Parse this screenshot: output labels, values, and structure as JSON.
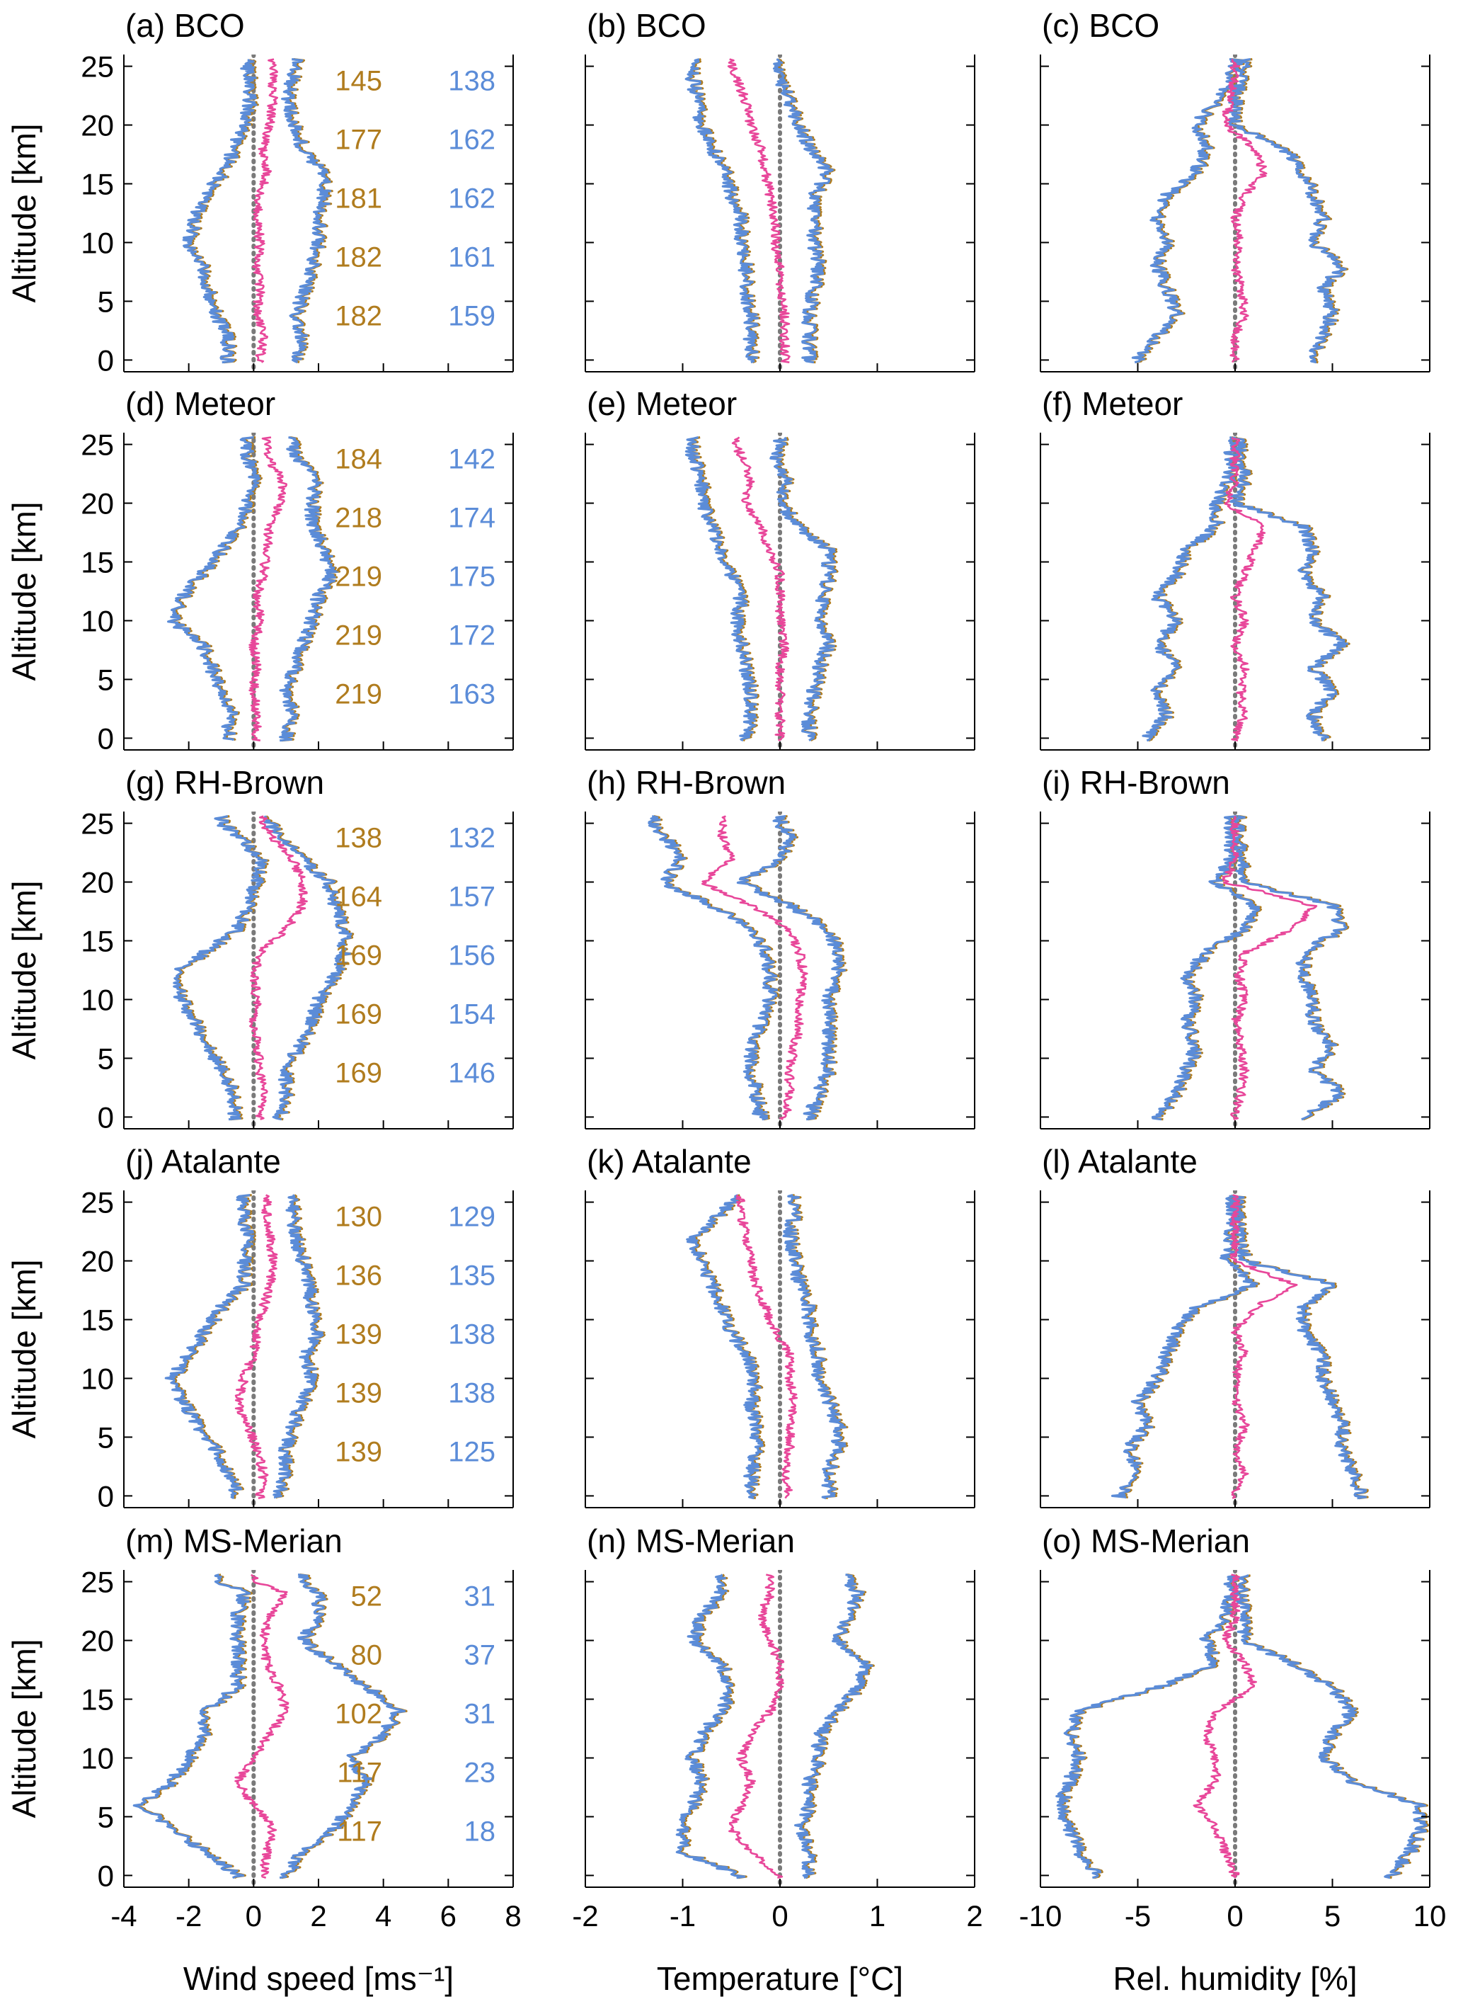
{
  "colors": {
    "orange": "#B07C1E",
    "blue": "#5B8CD8",
    "pink": "#E8479A",
    "zero_line": "#7a7a7a",
    "axis": "#000000"
  },
  "y_axis": {
    "label": "Altitude [km]",
    "range": [
      -1,
      26
    ],
    "ticks": [
      0,
      5,
      10,
      15,
      20,
      25
    ],
    "tick_labels": [
      "0",
      "5",
      "10",
      "15",
      "20",
      "25"
    ]
  },
  "x_axes": [
    {
      "label": "Wind speed [ms⁻¹]",
      "range": [
        -4,
        8
      ],
      "ticks": [
        -4,
        -2,
        0,
        2,
        4,
        6,
        8
      ],
      "tick_labels": [
        "-4",
        "-2",
        "0",
        "2",
        "4",
        "6",
        "8"
      ]
    },
    {
      "label": "Temperature [°C]",
      "range": [
        -2,
        2
      ],
      "ticks": [
        -2,
        -1,
        0,
        1,
        2
      ],
      "tick_labels": [
        "-2",
        "-1",
        "0",
        "1",
        "2"
      ]
    },
    {
      "label": "Rel. humidity [%]",
      "range": [
        -10,
        10
      ],
      "ticks": [
        -10,
        -5,
        0,
        5,
        10
      ],
      "tick_labels": [
        "-10",
        "-5",
        "0",
        "5",
        "10"
      ]
    }
  ],
  "rows": [
    {
      "platform": "BCO",
      "titles": [
        "(a) BCO",
        "(b) BCO",
        "(c) BCO"
      ],
      "count_altitudes": [
        23.8,
        18.8,
        13.8,
        8.8,
        3.8
      ],
      "counts_orange": [
        "145",
        "177",
        "181",
        "182",
        "182"
      ],
      "counts_blue": [
        "138",
        "162",
        "162",
        "161",
        "159"
      ]
    },
    {
      "platform": "Meteor",
      "titles": [
        "(d) Meteor",
        "(e) Meteor",
        "(f) Meteor"
      ],
      "count_altitudes": [
        23.8,
        18.8,
        13.8,
        8.8,
        3.8
      ],
      "counts_orange": [
        "184",
        "218",
        "219",
        "219",
        "219"
      ],
      "counts_blue": [
        "142",
        "174",
        "175",
        "172",
        "163"
      ]
    },
    {
      "platform": "RH-Brown",
      "titles": [
        "(g) RH-Brown",
        "(h) RH-Brown",
        "(i) RH-Brown"
      ],
      "count_altitudes": [
        23.8,
        18.8,
        13.8,
        8.8,
        3.8
      ],
      "counts_orange": [
        "138",
        "164",
        "169",
        "169",
        "169"
      ],
      "counts_blue": [
        "132",
        "157",
        "156",
        "154",
        "146"
      ]
    },
    {
      "platform": "Atalante",
      "titles": [
        "(j) Atalante",
        "(k) Atalante",
        "(l) Atalante"
      ],
      "count_altitudes": [
        23.8,
        18.8,
        13.8,
        8.8,
        3.8
      ],
      "counts_orange": [
        "130",
        "136",
        "139",
        "139",
        "139"
      ],
      "counts_blue": [
        "129",
        "135",
        "138",
        "138",
        "125"
      ]
    },
    {
      "platform": "MS-Merian",
      "titles": [
        "(m) MS-Merian",
        "(n) MS-Merian",
        "(o) MS-Merian"
      ],
      "count_altitudes": [
        23.8,
        18.8,
        13.8,
        8.8,
        3.8
      ],
      "counts_orange": [
        "52",
        "80",
        "102",
        "117",
        "117"
      ],
      "counts_blue": [
        "31",
        "37",
        "31",
        "23",
        "18"
      ]
    }
  ],
  "chart_data": {
    "type": "line",
    "layout": "5 rows (platforms) x 3 columns (variables)",
    "altitude_km": [
      0,
      2,
      4,
      6,
      8,
      10,
      12,
      14,
      16,
      18,
      20,
      22,
      24,
      25
    ],
    "panels": [
      {
        "panel": "a",
        "pink": [
          0.2,
          0.3,
          0.1,
          0.2,
          0.1,
          0.2,
          0.1,
          0.2,
          0.4,
          0.3,
          0.5,
          0.6,
          0.6,
          0.6
        ],
        "lower": [
          -0.8,
          -0.8,
          -1.2,
          -1.4,
          -1.6,
          -2.0,
          -1.8,
          -1.5,
          -0.9,
          -0.6,
          -0.3,
          -0.1,
          -0.1,
          -0.2
        ],
        "upper": [
          1.4,
          1.5,
          1.3,
          1.6,
          1.8,
          2.0,
          2.0,
          2.2,
          2.1,
          1.5,
          1.3,
          1.0,
          1.2,
          1.3
        ]
      },
      {
        "panel": "b",
        "pink": [
          0.05,
          0.05,
          0.05,
          0.0,
          0.0,
          -0.05,
          -0.05,
          -0.1,
          -0.15,
          -0.2,
          -0.3,
          -0.35,
          -0.45,
          -0.5
        ],
        "lower": [
          -0.3,
          -0.3,
          -0.3,
          -0.35,
          -0.35,
          -0.4,
          -0.4,
          -0.5,
          -0.55,
          -0.7,
          -0.8,
          -0.85,
          -0.9,
          -0.9
        ],
        "upper": [
          0.3,
          0.3,
          0.3,
          0.35,
          0.4,
          0.35,
          0.35,
          0.35,
          0.5,
          0.3,
          0.2,
          0.1,
          0.0,
          0.0
        ]
      },
      {
        "panel": "c",
        "pink": [
          0.0,
          0.0,
          0.5,
          0.3,
          0.0,
          0.2,
          0.0,
          0.5,
          1.5,
          1.0,
          -0.5,
          -0.3,
          0.0,
          0.0
        ],
        "lower": [
          -5.0,
          -4.0,
          -3.0,
          -3.5,
          -4.0,
          -3.5,
          -4.0,
          -3.5,
          -2.0,
          -1.5,
          -2.0,
          -1.0,
          -0.3,
          0.0
        ],
        "upper": [
          4.0,
          4.5,
          5.0,
          4.5,
          5.5,
          4.0,
          4.5,
          4.0,
          3.5,
          2.5,
          0.0,
          0.0,
          0.3,
          0.5
        ]
      },
      {
        "panel": "d",
        "pink": [
          0.1,
          0.1,
          0.0,
          0.1,
          0.0,
          0.2,
          0.1,
          0.3,
          0.4,
          0.5,
          0.8,
          0.9,
          0.4,
          0.4
        ],
        "lower": [
          -0.8,
          -0.7,
          -1.0,
          -1.3,
          -1.6,
          -2.5,
          -2.2,
          -1.6,
          -1.0,
          -0.4,
          -0.2,
          0.0,
          -0.2,
          -0.2
        ],
        "upper": [
          1.0,
          1.2,
          1.0,
          1.3,
          1.5,
          1.8,
          2.0,
          2.4,
          2.2,
          1.8,
          1.8,
          1.9,
          1.3,
          1.2
        ]
      },
      {
        "panel": "e",
        "pink": [
          0.0,
          0.0,
          0.0,
          0.0,
          0.05,
          0.0,
          0.0,
          0.0,
          -0.1,
          -0.2,
          -0.35,
          -0.3,
          -0.4,
          -0.45
        ],
        "lower": [
          -0.35,
          -0.3,
          -0.3,
          -0.35,
          -0.4,
          -0.45,
          -0.4,
          -0.5,
          -0.6,
          -0.7,
          -0.8,
          -0.8,
          -0.9,
          -0.9
        ],
        "upper": [
          0.3,
          0.3,
          0.35,
          0.4,
          0.5,
          0.4,
          0.45,
          0.5,
          0.5,
          0.2,
          0.0,
          0.05,
          -0.05,
          0.0
        ]
      },
      {
        "panel": "f",
        "pink": [
          0.0,
          0.5,
          0.3,
          0.5,
          0.0,
          0.5,
          0.0,
          0.5,
          1.0,
          1.5,
          -0.5,
          0.0,
          0.0,
          0.0
        ],
        "lower": [
          -4.5,
          -3.5,
          -4.0,
          -3.0,
          -4.0,
          -3.0,
          -4.0,
          -3.0,
          -2.5,
          -1.0,
          -1.0,
          -0.3,
          -0.2,
          -0.2
        ],
        "upper": [
          4.5,
          4.0,
          5.0,
          4.0,
          5.5,
          4.0,
          4.5,
          3.5,
          4.0,
          3.5,
          0.0,
          0.5,
          0.2,
          0.2
        ]
      },
      {
        "panel": "g",
        "pink": [
          0.2,
          0.3,
          0.2,
          0.1,
          0.0,
          0.1,
          0.0,
          0.2,
          1.0,
          1.5,
          1.5,
          1.2,
          0.5,
          0.3
        ],
        "lower": [
          -0.6,
          -0.6,
          -1.0,
          -1.4,
          -1.8,
          -2.2,
          -2.5,
          -1.5,
          -0.5,
          -0.2,
          0.1,
          0.2,
          -0.5,
          -1.0
        ],
        "upper": [
          0.8,
          1.0,
          1.0,
          1.4,
          1.8,
          2.0,
          2.5,
          2.8,
          2.8,
          2.5,
          2.3,
          1.5,
          0.8,
          0.5
        ]
      },
      {
        "panel": "h",
        "pink": [
          0.05,
          0.1,
          0.1,
          0.15,
          0.2,
          0.2,
          0.25,
          0.2,
          0.1,
          -0.3,
          -0.8,
          -0.5,
          -0.6,
          -0.6
        ],
        "lower": [
          -0.2,
          -0.25,
          -0.3,
          -0.3,
          -0.2,
          -0.1,
          -0.1,
          -0.15,
          -0.3,
          -0.7,
          -1.2,
          -1.0,
          -1.2,
          -1.3
        ],
        "upper": [
          0.3,
          0.4,
          0.5,
          0.5,
          0.5,
          0.5,
          0.6,
          0.6,
          0.5,
          0.1,
          -0.4,
          0.0,
          0.1,
          0.0
        ]
      },
      {
        "panel": "i",
        "pink": [
          0.0,
          0.3,
          0.5,
          0.3,
          0.0,
          0.5,
          0.2,
          0.5,
          3.0,
          4.0,
          -0.5,
          0.0,
          0.0,
          0.0
        ],
        "lower": [
          -4.0,
          -3.0,
          -2.5,
          -2.0,
          -2.5,
          -2.0,
          -2.5,
          -1.5,
          0.5,
          1.0,
          -1.0,
          -0.2,
          -0.2,
          -0.2
        ],
        "upper": [
          3.5,
          5.5,
          4.0,
          5.0,
          4.0,
          4.0,
          3.5,
          3.5,
          5.5,
          5.0,
          0.5,
          0.3,
          0.2,
          0.2
        ]
      },
      {
        "panel": "j",
        "pink": [
          0.2,
          0.3,
          0.1,
          -0.2,
          -0.5,
          -0.3,
          0.0,
          0.1,
          0.3,
          0.5,
          0.6,
          0.5,
          0.4,
          0.4
        ],
        "lower": [
          -0.5,
          -0.8,
          -1.2,
          -1.7,
          -2.2,
          -2.5,
          -2.0,
          -1.5,
          -1.0,
          -0.3,
          -0.3,
          -0.2,
          -0.3,
          -0.3
        ],
        "upper": [
          0.8,
          1.0,
          1.0,
          1.2,
          1.5,
          1.8,
          1.6,
          2.0,
          1.8,
          1.7,
          1.5,
          1.3,
          1.2,
          1.2
        ]
      },
      {
        "panel": "k",
        "pink": [
          0.1,
          0.05,
          0.1,
          0.1,
          0.15,
          0.1,
          0.1,
          -0.05,
          -0.15,
          -0.25,
          -0.3,
          -0.35,
          -0.4,
          -0.4
        ],
        "lower": [
          -0.3,
          -0.3,
          -0.25,
          -0.25,
          -0.3,
          -0.25,
          -0.35,
          -0.5,
          -0.6,
          -0.7,
          -0.8,
          -0.9,
          -0.6,
          -0.5
        ],
        "upper": [
          0.5,
          0.5,
          0.6,
          0.6,
          0.5,
          0.4,
          0.4,
          0.3,
          0.3,
          0.2,
          0.15,
          0.1,
          0.15,
          0.15
        ]
      },
      {
        "panel": "l",
        "pink": [
          0.0,
          0.5,
          0.0,
          0.5,
          0.0,
          0.0,
          0.5,
          0.0,
          1.0,
          3.0,
          0.0,
          0.0,
          0.0,
          0.0
        ],
        "lower": [
          -6.0,
          -5.0,
          -5.5,
          -4.5,
          -5.0,
          -4.0,
          -3.5,
          -3.0,
          -2.0,
          1.0,
          -0.5,
          -0.2,
          -0.1,
          -0.1
        ],
        "upper": [
          6.5,
          6.0,
          5.5,
          5.5,
          5.0,
          4.5,
          4.5,
          3.5,
          3.5,
          5.0,
          0.5,
          0.2,
          0.1,
          0.1
        ]
      },
      {
        "panel": "m",
        "pink": [
          0.3,
          0.4,
          0.6,
          0.0,
          -0.5,
          0.0,
          0.5,
          1.0,
          0.8,
          0.4,
          0.3,
          0.5,
          1.0,
          0.0
        ],
        "lower": [
          -0.5,
          -1.5,
          -2.5,
          -3.5,
          -2.5,
          -2.0,
          -1.5,
          -1.5,
          -0.5,
          -0.5,
          -0.5,
          -0.5,
          -0.3,
          -1.0
        ],
        "upper": [
          1.0,
          1.5,
          2.5,
          3.0,
          3.5,
          3.0,
          4.0,
          4.5,
          3.5,
          2.5,
          1.5,
          2.0,
          2.0,
          1.5
        ]
      },
      {
        "panel": "n",
        "pink": [
          0.0,
          -0.3,
          -0.5,
          -0.4,
          -0.3,
          -0.4,
          -0.3,
          -0.1,
          0.0,
          0.0,
          -0.1,
          -0.2,
          -0.1,
          -0.1
        ],
        "lower": [
          -0.4,
          -1.0,
          -1.0,
          -0.9,
          -0.8,
          -0.9,
          -0.8,
          -0.6,
          -0.5,
          -0.6,
          -0.9,
          -0.8,
          -0.6,
          -0.6
        ],
        "upper": [
          0.3,
          0.3,
          0.2,
          0.3,
          0.3,
          0.4,
          0.4,
          0.6,
          0.8,
          0.9,
          0.6,
          0.7,
          0.8,
          0.7
        ]
      },
      {
        "panel": "o",
        "pink": [
          0.0,
          -0.5,
          -1.0,
          -2.0,
          -1.0,
          -1.0,
          -1.5,
          -1.0,
          1.0,
          0.5,
          -0.5,
          0.0,
          0.0,
          0.0
        ],
        "lower": [
          -7.0,
          -8.0,
          -8.5,
          -9.0,
          -8.5,
          -8.0,
          -8.5,
          -8.0,
          -4.0,
          -1.0,
          -1.5,
          -0.5,
          -0.2,
          -0.2
        ],
        "upper": [
          8.0,
          9.0,
          9.5,
          9.5,
          6.0,
          4.5,
          5.0,
          6.0,
          5.0,
          3.0,
          0.5,
          0.5,
          0.3,
          0.3
        ]
      }
    ]
  }
}
